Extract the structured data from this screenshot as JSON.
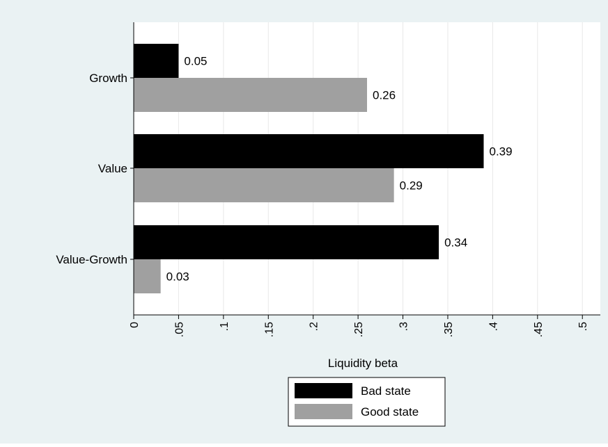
{
  "chart_data": {
    "type": "bar",
    "orientation": "horizontal",
    "categories": [
      "Growth",
      "Value",
      "Value-Growth"
    ],
    "series": [
      {
        "name": "Bad state",
        "values": [
          0.05,
          0.39,
          0.34
        ],
        "labels": [
          "0.05",
          "0.39",
          "0.34"
        ],
        "color": "#000000"
      },
      {
        "name": "Good state",
        "values": [
          0.26,
          0.29,
          0.03
        ],
        "labels": [
          "0.26",
          "0.29",
          "0.03"
        ],
        "color": "#a0a0a0"
      }
    ],
    "xlabel": "Liquidity beta",
    "xlim": [
      0,
      0.52
    ],
    "xticks": [
      0,
      0.05,
      0.1,
      0.15,
      0.2,
      0.25,
      0.3,
      0.35,
      0.4,
      0.45,
      0.5
    ],
    "xtick_labels": [
      "0",
      ".05",
      ".1",
      ".15",
      ".2",
      ".25",
      ".3",
      ".35",
      ".4",
      ".45",
      ".5"
    ],
    "grid": "vertical",
    "legend": "bottom",
    "colors": {
      "background": "#eaf2f3",
      "plot_background": "#ffffff",
      "gridline": "#e8e8e8"
    }
  }
}
